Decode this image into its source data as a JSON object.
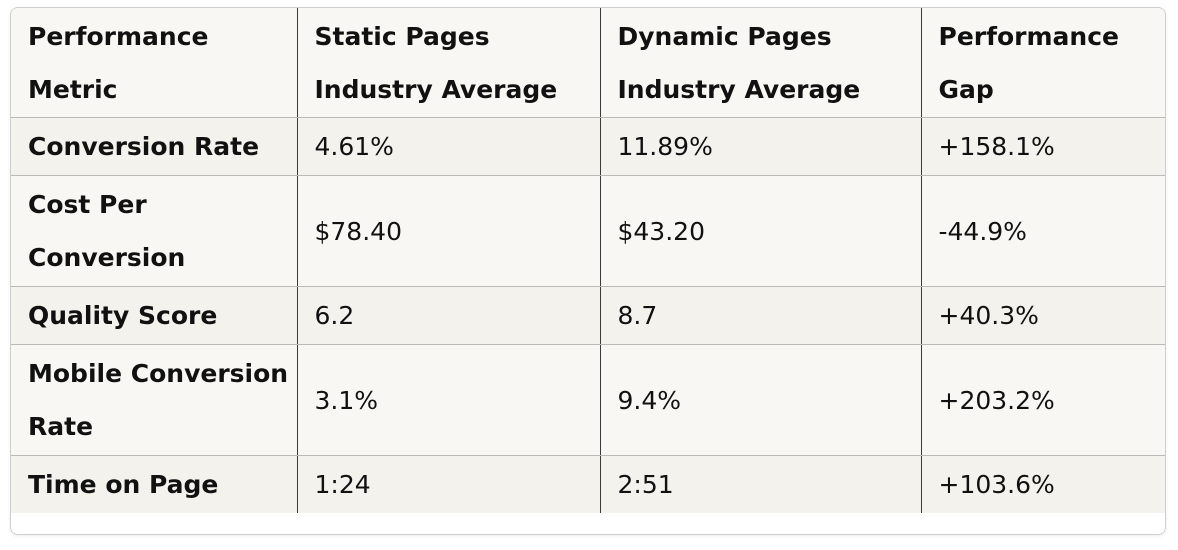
{
  "table": {
    "headers": [
      "Performance Metric",
      "Static Pages Industry Average",
      "Dynamic Pages Industry Average",
      "Performance Gap"
    ],
    "rows": [
      [
        "Conversion Rate",
        "4.61%",
        "11.89%",
        "+158.1%"
      ],
      [
        "Cost Per Conversion",
        "$78.40",
        "$43.20",
        "-44.9%"
      ],
      [
        "Quality Score",
        "6.2",
        "8.7",
        "+40.3%"
      ],
      [
        "Mobile Conversion Rate",
        "3.1%",
        "9.4%",
        "+203.2%"
      ],
      [
        "Time on Page",
        "1:24",
        "2:51",
        "+103.6%"
      ]
    ]
  }
}
